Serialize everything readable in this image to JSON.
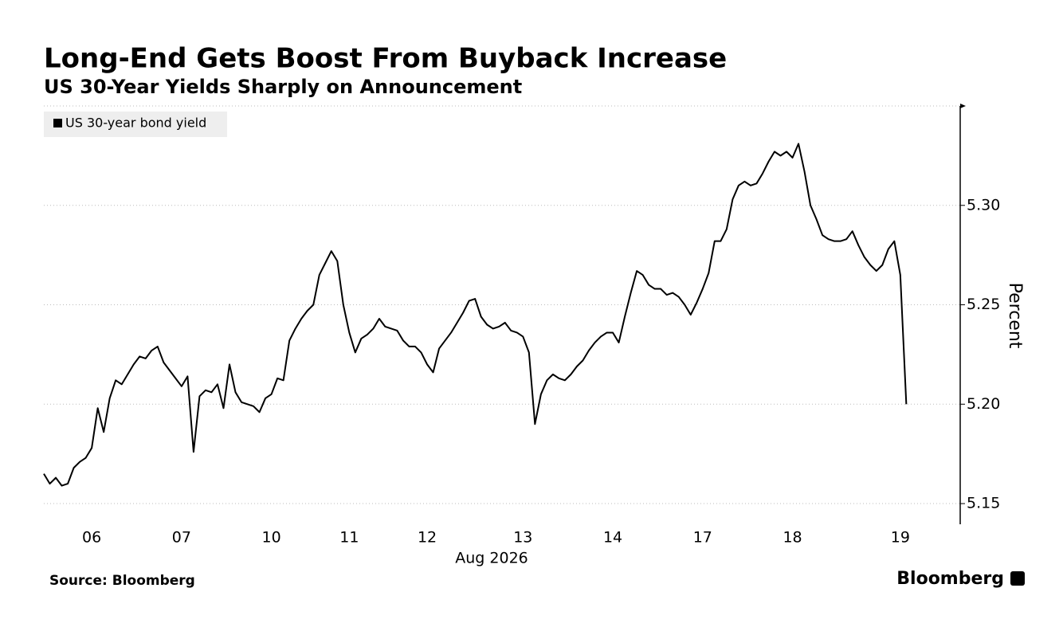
{
  "chart_data": {
    "type": "line",
    "title": "Long-End Gets Boost From Buyback Increase",
    "subtitle": "US 30-Year Yields Sharply on Announcement",
    "y_axis_label": "Percent",
    "x_axis_label": "Aug 2026",
    "source": "Source: Bloomberg",
    "brand": "Bloomberg",
    "grid": true,
    "xlim": [
      0,
      153
    ],
    "xticks": [
      {
        "value": 8,
        "label": "06"
      },
      {
        "value": 23,
        "label": "07"
      },
      {
        "value": 38,
        "label": "10"
      },
      {
        "value": 51,
        "label": "11"
      },
      {
        "value": 64,
        "label": "12"
      },
      {
        "value": 80,
        "label": "13"
      },
      {
        "value": 95,
        "label": "14"
      },
      {
        "value": 110,
        "label": "17"
      },
      {
        "value": 125,
        "label": "18"
      },
      {
        "value": 143,
        "label": "19"
      }
    ],
    "ylim": [
      5.14,
      5.35
    ],
    "yticks": [
      5.15,
      {
        "value": 5.2,
        "label": "5.20"
      },
      5.25,
      {
        "value": 5.3,
        "label": "5.30"
      }
    ],
    "x": [
      0,
      1,
      2,
      3,
      4,
      5,
      6,
      7,
      8,
      9,
      10,
      11,
      12,
      13,
      14,
      15,
      16,
      17,
      18,
      19,
      20,
      21,
      22,
      23,
      24,
      25,
      26,
      27,
      28,
      29,
      30,
      31,
      32,
      33,
      34,
      35,
      36,
      37,
      38,
      39,
      40,
      41,
      42,
      43,
      44,
      45,
      46,
      47,
      48,
      49,
      50,
      51,
      52,
      53,
      54,
      55,
      56,
      57,
      58,
      59,
      60,
      61,
      62,
      63,
      64,
      65,
      66,
      67,
      68,
      69,
      70,
      71,
      72,
      73,
      74,
      75,
      76,
      77,
      78,
      79,
      80,
      81,
      82,
      83,
      84,
      85,
      86,
      87,
      88,
      89,
      90,
      91,
      92,
      93,
      94,
      95,
      96,
      97,
      98,
      99,
      100,
      101,
      102,
      103,
      104,
      105,
      106,
      107,
      108,
      109,
      110,
      111,
      112,
      113,
      114,
      115,
      116,
      117,
      118,
      119,
      120,
      121,
      122,
      123,
      124,
      125,
      126,
      127,
      128,
      129,
      130,
      131,
      132,
      133,
      134,
      135,
      136,
      137,
      138,
      139,
      140,
      141,
      142,
      143,
      144
    ],
    "series": [
      {
        "name": "US 30-year bond yield",
        "color": "#000000",
        "values": [
          5.165,
          5.16,
          5.163,
          5.159,
          5.16,
          5.168,
          5.171,
          5.173,
          5.178,
          5.198,
          5.186,
          5.203,
          5.212,
          5.21,
          5.215,
          5.22,
          5.224,
          5.223,
          5.227,
          5.229,
          5.221,
          5.217,
          5.213,
          5.209,
          5.214,
          5.176,
          5.204,
          5.207,
          5.206,
          5.21,
          5.198,
          5.22,
          5.206,
          5.201,
          5.2,
          5.199,
          5.196,
          5.203,
          5.205,
          5.213,
          5.212,
          5.232,
          5.238,
          5.243,
          5.247,
          5.25,
          5.265,
          5.271,
          5.277,
          5.272,
          5.25,
          5.236,
          5.226,
          5.233,
          5.235,
          5.238,
          5.243,
          5.239,
          5.238,
          5.237,
          5.232,
          5.229,
          5.229,
          5.226,
          5.22,
          5.216,
          5.228,
          5.232,
          5.236,
          5.241,
          5.246,
          5.252,
          5.253,
          5.244,
          5.24,
          5.238,
          5.239,
          5.241,
          5.237,
          5.236,
          5.234,
          5.226,
          5.19,
          5.205,
          5.212,
          5.215,
          5.213,
          5.212,
          5.215,
          5.219,
          5.222,
          5.227,
          5.231,
          5.234,
          5.236,
          5.236,
          5.231,
          5.244,
          5.256,
          5.267,
          5.265,
          5.26,
          5.258,
          5.258,
          5.255,
          5.256,
          5.254,
          5.25,
          5.245,
          5.251,
          5.258,
          5.266,
          5.282,
          5.282,
          5.288,
          5.303,
          5.31,
          5.312,
          5.31,
          5.311,
          5.316,
          5.322,
          5.327,
          5.325,
          5.327,
          5.324,
          5.331,
          5.317,
          5.3,
          5.293,
          5.285,
          5.283,
          5.282,
          5.282,
          5.283,
          5.287,
          5.28,
          5.274,
          5.27,
          5.267,
          5.27,
          5.278,
          5.282,
          5.265,
          5.2
        ]
      }
    ]
  }
}
